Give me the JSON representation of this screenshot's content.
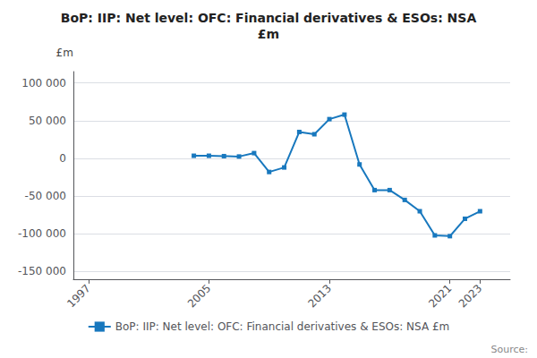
{
  "chart_data": {
    "type": "line",
    "title": "BoP: IIP: Net level: OFC: Financial derivatives & ESOs: NSA\n£m",
    "ylabel": "£m",
    "annotations": [
      "Source:"
    ],
    "x": [
      1997,
      1998,
      1999,
      2000,
      2001,
      2002,
      2003,
      2004,
      2005,
      2006,
      2007,
      2008,
      2009,
      2010,
      2011,
      2012,
      2013,
      2014,
      2015,
      2016,
      2017,
      2018,
      2019,
      2020,
      2021,
      2022,
      2023
    ],
    "series": [
      {
        "name": "BoP: IIP: Net level: OFC: Financial derivatives & ESOs: NSA £m",
        "color": "#1878be",
        "marker": "square",
        "values": [
          null,
          null,
          null,
          null,
          null,
          null,
          null,
          3500,
          3500,
          3000,
          2500,
          7000,
          -18000,
          -12000,
          35000,
          32000,
          52000,
          58000,
          -8000,
          -42000,
          -42000,
          -55000,
          -70000,
          -102000,
          -103000,
          -80000,
          -70000
        ]
      }
    ],
    "xlim": [
      1996,
      2025
    ],
    "xticks": [
      1997,
      2005,
      2013,
      2021,
      2023
    ],
    "ylim": [
      -160000,
      115000
    ],
    "yticks": [
      {
        "value": -150000,
        "label": "-150 000"
      },
      {
        "value": -100000,
        "label": "-100 000"
      },
      {
        "value": -50000,
        "label": "-50 000"
      },
      0,
      {
        "value": 50000,
        "label": "50 000"
      },
      {
        "value": 100000,
        "label": "100 000"
      }
    ],
    "grid": true,
    "legend": "bottom"
  }
}
